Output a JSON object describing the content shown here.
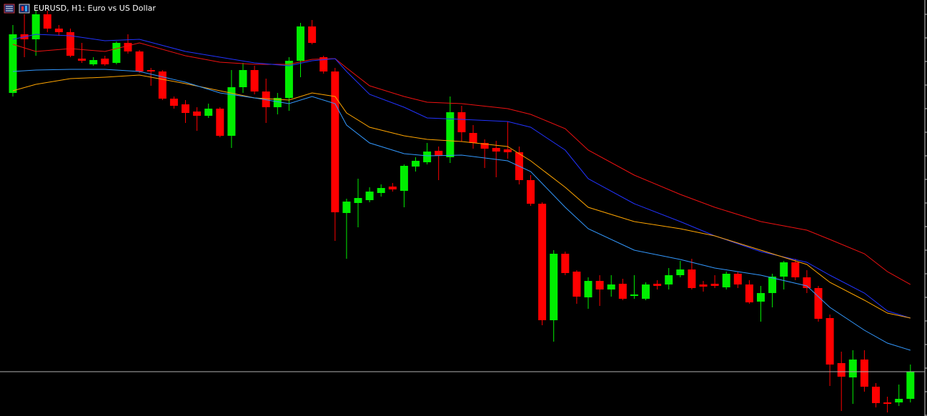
{
  "chart_data": {
    "type": "candlestick",
    "title": "EURUSD, H1:  Euro vs US Dollar",
    "ylim": [
      0,
      582
    ],
    "up_color": "#00ee00",
    "down_color": "#ff0000",
    "candles": {
      "open": [
        452,
        534,
        527,
        562,
        542,
        537,
        500,
        492,
        500,
        494,
        522,
        510,
        484,
        482,
        444,
        436,
        426,
        420,
        430,
        392,
        460,
        484,
        454,
        432,
        445,
        497,
        545,
        502,
        482,
        284,
        298,
        302,
        312,
        321,
        315,
        349,
        355,
        371,
        362,
        425,
        396,
        382,
        375,
        373,
        369,
        330,
        297,
        134,
        227,
        202,
        166,
        189,
        177,
        185,
        168,
        164,
        185,
        184,
        197,
        205,
        184,
        185,
        180,
        199,
        184,
        160,
        172,
        195,
        215,
        194,
        179,
        137,
        74,
        54,
        79,
        41,
        19,
        19,
        24
      ],
      "high": [
        547,
        562,
        567,
        567,
        547,
        542,
        522,
        502,
        504,
        524,
        534,
        512,
        487,
        484,
        447,
        442,
        432,
        437,
        432,
        484,
        494,
        490,
        472,
        452,
        502,
        550,
        554,
        504,
        487,
        304,
        332,
        320,
        324,
        326,
        352,
        362,
        382,
        377,
        447,
        434,
        407,
        387,
        385,
        412,
        377,
        337,
        299,
        232,
        230,
        204,
        194,
        197,
        197,
        192,
        197,
        187,
        190,
        207,
        217,
        220,
        189,
        197,
        202,
        202,
        190,
        182,
        199,
        217,
        220,
        204,
        182,
        142,
        90,
        92,
        92,
        46,
        27,
        44,
        72
      ],
      "low": [
        447,
        502,
        504,
        537,
        532,
        502,
        494,
        490,
        490,
        492,
        507,
        480,
        462,
        442,
        430,
        410,
        399,
        417,
        390,
        375,
        452,
        450,
        410,
        422,
        427,
        474,
        520,
        479,
        245,
        220,
        264,
        299,
        307,
        314,
        292,
        342,
        352,
        330,
        354,
        384,
        374,
        347,
        334,
        360,
        324,
        294,
        127,
        104,
        197,
        157,
        150,
        154,
        167,
        162,
        164,
        162,
        177,
        177,
        194,
        177,
        174,
        179,
        177,
        179,
        157,
        132,
        152,
        177,
        190,
        172,
        132,
        42,
        7,
        17,
        34,
        12,
        5,
        14,
        19
      ],
      "close": [
        534,
        527,
        562,
        542,
        537,
        504,
        497,
        498,
        492,
        522,
        510,
        482,
        482,
        444,
        434,
        424,
        420,
        430,
        392,
        460,
        484,
        454,
        432,
        445,
        497,
        545,
        522,
        482,
        285,
        300,
        305,
        314,
        319,
        317,
        350,
        357,
        370,
        364,
        425,
        397,
        382,
        374,
        370,
        369,
        330,
        297,
        134,
        227,
        200,
        167,
        189,
        177,
        184,
        164,
        170,
        184,
        182,
        197,
        205,
        179,
        181,
        182,
        199,
        184,
        159,
        172,
        195,
        215,
        194,
        179,
        136,
        72,
        55,
        79,
        41,
        18,
        17,
        24,
        62
      ]
    },
    "series": [
      {
        "color": "#ee1111",
        "x": [
          0,
          2,
          5,
          8,
          11,
          15,
          18,
          21,
          24,
          26,
          28,
          29,
          31,
          34,
          36,
          39,
          43,
          45,
          48,
          50,
          54,
          58,
          61,
          65,
          69,
          71,
          74,
          76,
          78
        ],
        "values": [
          520,
          510,
          514,
          510,
          522,
          504,
          495,
          492,
          492,
          499,
          500,
          487,
          462,
          447,
          439,
          437,
          430,
          422,
          402,
          372,
          337,
          310,
          292,
          272,
          260,
          247,
          227,
          202,
          184
        ]
      },
      {
        "color": "#2233ff",
        "x": [
          0,
          2,
          5,
          8,
          11,
          15,
          18,
          21,
          24,
          26,
          28,
          29,
          31,
          34,
          36,
          39,
          43,
          45,
          48,
          50,
          54,
          58,
          61,
          65,
          69,
          71,
          74,
          76,
          78
        ],
        "values": [
          527,
          534,
          532,
          525,
          527,
          510,
          502,
          494,
          490,
          497,
          500,
          482,
          450,
          432,
          417,
          415,
          412,
          404,
          372,
          332,
          297,
          272,
          252,
          230,
          215,
          197,
          172,
          147,
          137
        ]
      },
      {
        "color": "#ffa500",
        "x": [
          0,
          2,
          5,
          8,
          11,
          15,
          18,
          21,
          24,
          26,
          28,
          29,
          31,
          34,
          36,
          39,
          43,
          45,
          48,
          50,
          54,
          58,
          61,
          65,
          69,
          71,
          74,
          76,
          78
        ],
        "values": [
          455,
          464,
          472,
          474,
          477,
          465,
          455,
          445,
          442,
          452,
          447,
          424,
          404,
          392,
          387,
          384,
          377,
          357,
          320,
          292,
          272,
          262,
          252,
          232,
          212,
          187,
          162,
          144,
          137
        ]
      },
      {
        "color": "#3399ff",
        "x": [
          0,
          2,
          5,
          8,
          11,
          15,
          18,
          21,
          24,
          26,
          28,
          29,
          31,
          34,
          36,
          39,
          43,
          45,
          48,
          50,
          54,
          58,
          61,
          65,
          69,
          71,
          74,
          76,
          78
        ],
        "values": [
          482,
          484,
          485,
          485,
          482,
          467,
          452,
          445,
          437,
          447,
          437,
          407,
          382,
          367,
          364,
          365,
          357,
          342,
          292,
          262,
          232,
          219,
          207,
          197,
          182,
          152,
          120,
          102,
          92
        ]
      }
    ]
  }
}
